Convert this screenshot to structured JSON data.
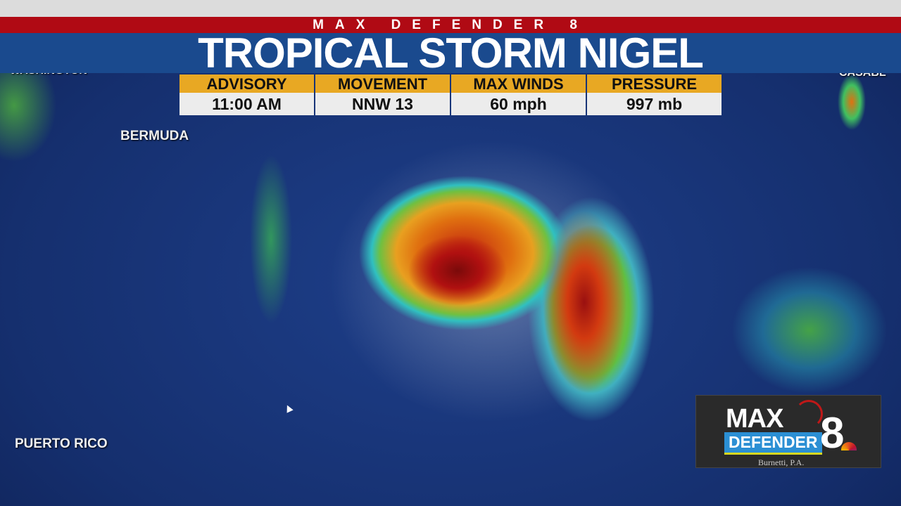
{
  "header": {
    "brand": "MAX DEFENDER 8",
    "title": "TROPICAL STORM NIGEL"
  },
  "stats": [
    {
      "label": "ADVISORY",
      "value": "11:00 AM"
    },
    {
      "label": "MOVEMENT",
      "value": "NNW 13"
    },
    {
      "label": "MAX WINDS",
      "value": "60 mph"
    },
    {
      "label": "PRESSURE",
      "value": "997 mb"
    }
  ],
  "map_labels": {
    "washington": "WASHINGTON",
    "casablanca": "CASABL",
    "bermuda": "BERMUDA",
    "puerto_rico": "PUERTO RICO"
  },
  "logo": {
    "line1": "MAX",
    "line2": "DEFENDER",
    "number": "8",
    "sponsor": "Burnetti, P.A."
  }
}
